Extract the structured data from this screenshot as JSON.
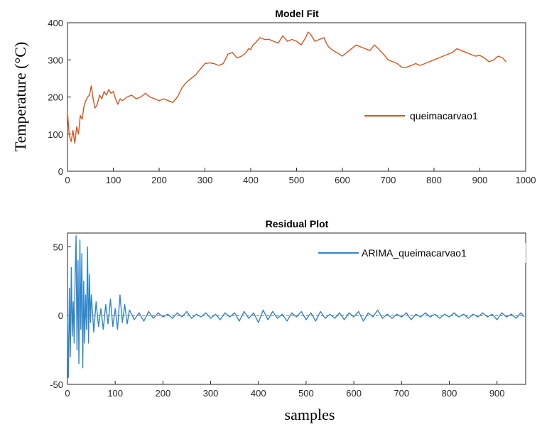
{
  "chart_data": [
    {
      "type": "line",
      "title": "Model Fit",
      "ylabel": "Temperature (°C)",
      "xlabel": "",
      "xlim": [
        0,
        1000
      ],
      "ylim": [
        0,
        400
      ],
      "xticks": [
        "0",
        "100",
        "200",
        "300",
        "400",
        "500",
        "600",
        "700",
        "800",
        "900",
        "1000"
      ],
      "yticks": [
        "0",
        "100",
        "200",
        "300",
        "400"
      ],
      "legend_position": "right",
      "grid": false,
      "series": [
        {
          "name": "queimacarvao1",
          "color": "#d9531e",
          "x": [
            0,
            4,
            8,
            12,
            16,
            20,
            24,
            28,
            32,
            36,
            40,
            44,
            48,
            52,
            56,
            60,
            65,
            70,
            75,
            80,
            85,
            90,
            95,
            100,
            105,
            110,
            115,
            120,
            130,
            140,
            150,
            160,
            170,
            180,
            190,
            200,
            210,
            220,
            230,
            240,
            250,
            260,
            270,
            280,
            290,
            300,
            310,
            320,
            330,
            340,
            350,
            360,
            370,
            380,
            390,
            395,
            400,
            405,
            410,
            420,
            430,
            440,
            450,
            460,
            470,
            480,
            490,
            500,
            510,
            520,
            525,
            530,
            540,
            550,
            560,
            565,
            570,
            580,
            590,
            600,
            610,
            620,
            630,
            640,
            650,
            660,
            670,
            680,
            690,
            700,
            710,
            720,
            730,
            740,
            750,
            760,
            770,
            780,
            790,
            800,
            810,
            820,
            830,
            840,
            850,
            860,
            870,
            880,
            890,
            900,
            910,
            920,
            930,
            940,
            950,
            957
          ],
          "y": [
            160,
            95,
            80,
            110,
            75,
            120,
            100,
            150,
            140,
            175,
            190,
            200,
            205,
            230,
            195,
            170,
            180,
            205,
            195,
            215,
            205,
            220,
            210,
            215,
            195,
            180,
            195,
            190,
            200,
            205,
            195,
            200,
            210,
            200,
            195,
            190,
            195,
            190,
            185,
            200,
            225,
            240,
            250,
            260,
            275,
            290,
            292,
            290,
            285,
            290,
            315,
            320,
            305,
            310,
            320,
            330,
            328,
            340,
            345,
            360,
            355,
            355,
            350,
            345,
            365,
            350,
            355,
            350,
            340,
            360,
            375,
            370,
            350,
            355,
            360,
            345,
            335,
            325,
            318,
            310,
            320,
            330,
            340,
            335,
            330,
            325,
            340,
            328,
            315,
            300,
            295,
            290,
            280,
            280,
            285,
            290,
            285,
            290,
            295,
            300,
            305,
            310,
            315,
            320,
            330,
            325,
            320,
            315,
            310,
            312,
            305,
            295,
            300,
            310,
            305,
            295
          ]
        }
      ]
    },
    {
      "type": "line",
      "title": "Residual Plot",
      "xlabel": "samples",
      "ylabel": "",
      "xlim": [
        0,
        960
      ],
      "ylim": [
        -50,
        60
      ],
      "xticks": [
        "0",
        "100",
        "200",
        "300",
        "400",
        "500",
        "600",
        "700",
        "800",
        "900"
      ],
      "yticks": [
        "-50",
        "0",
        "50"
      ],
      "legend_position": "top-right",
      "grid": false,
      "zero_line_color": "#e03a3a",
      "series": [
        {
          "name": "ARIMA_queimacarvao1",
          "color": "#2f86c9",
          "x": [
            0,
            2,
            4,
            6,
            8,
            10,
            12,
            14,
            16,
            18,
            20,
            22,
            24,
            26,
            28,
            30,
            32,
            34,
            36,
            38,
            40,
            42,
            44,
            46,
            48,
            50,
            55,
            60,
            65,
            70,
            75,
            80,
            85,
            90,
            95,
            100,
            105,
            110,
            115,
            120,
            125,
            130,
            140,
            150,
            160,
            170,
            180,
            190,
            200,
            210,
            220,
            230,
            240,
            250,
            260,
            270,
            280,
            290,
            300,
            310,
            320,
            330,
            340,
            350,
            360,
            370,
            380,
            390,
            400,
            410,
            420,
            430,
            440,
            450,
            460,
            470,
            480,
            490,
            500,
            510,
            520,
            530,
            540,
            550,
            560,
            570,
            580,
            590,
            600,
            610,
            620,
            630,
            640,
            650,
            660,
            670,
            680,
            690,
            700,
            710,
            720,
            730,
            740,
            750,
            760,
            770,
            780,
            790,
            800,
            810,
            820,
            830,
            840,
            850,
            860,
            870,
            880,
            890,
            900,
            910,
            920,
            930,
            940,
            950,
            957
          ],
          "y": [
            0,
            -45,
            20,
            -30,
            35,
            -15,
            10,
            -20,
            30,
            58,
            -25,
            40,
            -35,
            55,
            -10,
            45,
            -38,
            25,
            -20,
            15,
            -10,
            50,
            -20,
            30,
            -5,
            15,
            -12,
            10,
            -8,
            5,
            -10,
            8,
            -6,
            12,
            -8,
            5,
            -10,
            15,
            -5,
            8,
            -6,
            4,
            -3,
            2,
            -4,
            3,
            -2,
            2,
            -1,
            1,
            -2,
            2,
            -1,
            3,
            -2,
            1,
            -1,
            2,
            -2,
            1,
            -3,
            2,
            -1,
            2,
            -4,
            3,
            -2,
            2,
            -5,
            4,
            -3,
            3,
            -2,
            1,
            -4,
            2,
            -1,
            3,
            -3,
            2,
            -4,
            3,
            -2,
            1,
            -2,
            2,
            -3,
            2,
            -1,
            3,
            -4,
            2,
            -1,
            4,
            -2,
            1,
            -2,
            1,
            -1,
            2,
            -3,
            1,
            -1,
            2,
            -1,
            1,
            -2,
            1,
            -1,
            2,
            -1,
            1,
            -2,
            1,
            -1,
            2,
            -1,
            1,
            -3,
            2,
            -1,
            1,
            -2,
            2,
            -1
          ]
        }
      ]
    }
  ]
}
